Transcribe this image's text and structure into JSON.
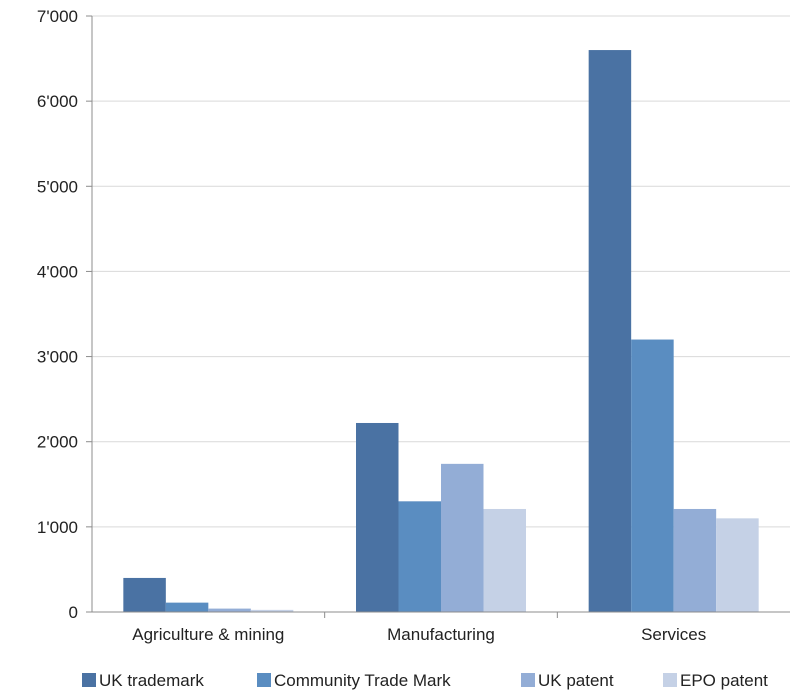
{
  "chart_data": {
    "type": "bar",
    "categories": [
      "Agriculture & mining",
      "Manufacturing",
      "Services"
    ],
    "series": [
      {
        "name": "UK trademark",
        "color": "#4a72a3",
        "values": [
          400,
          2220,
          6600
        ]
      },
      {
        "name": "Community Trade Mark",
        "color": "#5a8dc1",
        "values": [
          110,
          1300,
          3200
        ]
      },
      {
        "name": "UK patent",
        "color": "#93add6",
        "values": [
          40,
          1740,
          1210
        ]
      },
      {
        "name": "EPO patent",
        "color": "#c5d1e6",
        "values": [
          25,
          1210,
          1100
        ]
      }
    ],
    "y_ticks": [
      "0",
      "1'000",
      "2'000",
      "3'000",
      "4'000",
      "5'000",
      "6'000",
      "7'000"
    ],
    "ylim": [
      0,
      7000
    ],
    "grid": true,
    "legend_position": "bottom"
  }
}
